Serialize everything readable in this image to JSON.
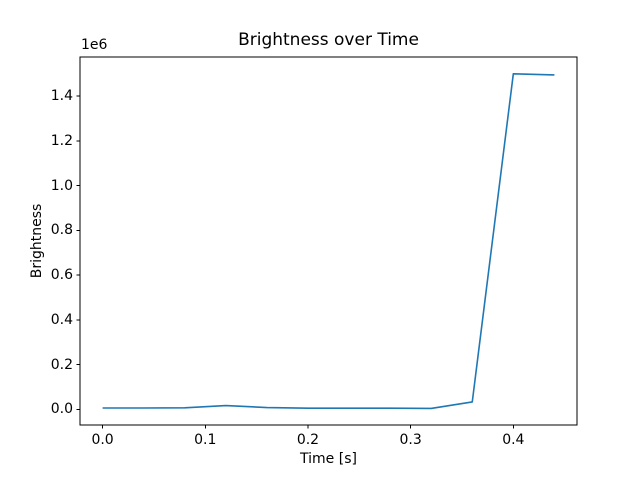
{
  "chart_data": {
    "type": "line",
    "title": "Brightness over Time",
    "xlabel": "Time [s]",
    "ylabel": "Brightness",
    "y_offset_label": "1e6",
    "x": [
      0.0,
      0.04,
      0.08,
      0.12,
      0.16,
      0.2,
      0.24,
      0.28,
      0.32,
      0.36,
      0.4,
      0.44
    ],
    "y": [
      6000,
      6000,
      7000,
      17000,
      8000,
      5000,
      5000,
      5000,
      4000,
      33000,
      1500000,
      1495000
    ],
    "xlim": [
      -0.022,
      0.462
    ],
    "ylim": [
      -70000,
      1575000
    ],
    "xticks": {
      "values": [
        0.0,
        0.1,
        0.2,
        0.3,
        0.4
      ],
      "labels": [
        "0.0",
        "0.1",
        "0.2",
        "0.3",
        "0.4"
      ]
    },
    "yticks": {
      "values": [
        0,
        200000,
        400000,
        600000,
        800000,
        1000000,
        1200000,
        1400000
      ],
      "labels": [
        "0.0",
        "0.2",
        "0.4",
        "0.6",
        "0.8",
        "1.0",
        "1.2",
        "1.4"
      ]
    },
    "line_color": "#1f77b4",
    "axes_color": "#000000",
    "background": "#ffffff",
    "grid": false,
    "legend": null
  }
}
